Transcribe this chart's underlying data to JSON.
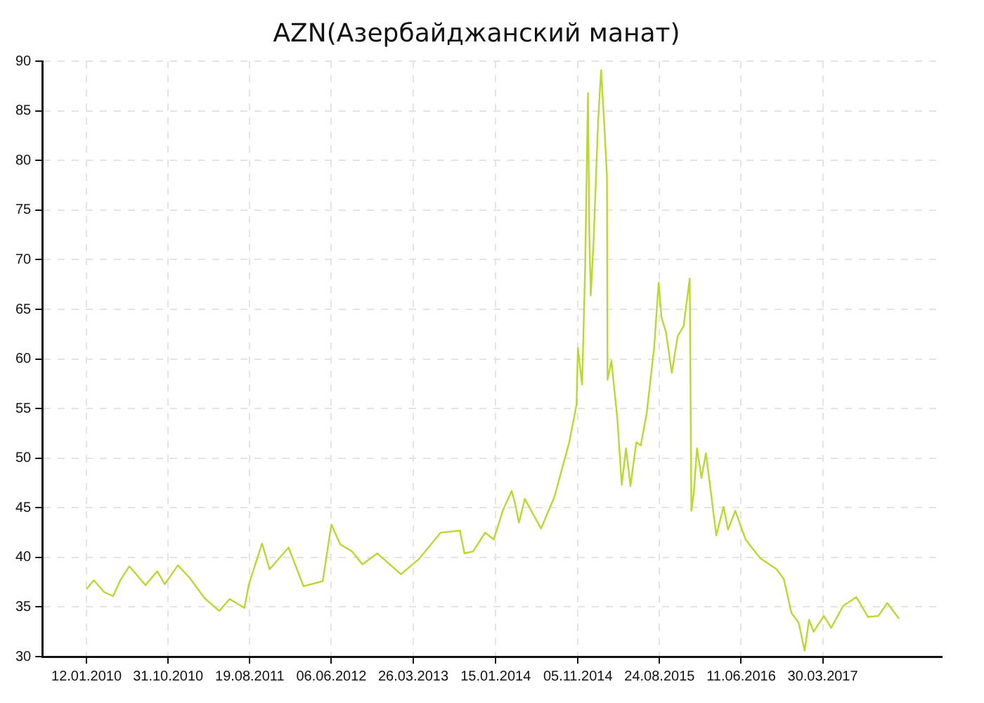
{
  "chart_data": {
    "type": "line",
    "title": "AZN(Азербайджанский манат)",
    "x": [
      "2010-01-12",
      "2010-02-07",
      "2010-03-16",
      "2010-04-17",
      "2010-05-13",
      "2010-06-14",
      "2010-08-11",
      "2010-09-22",
      "2010-10-19",
      "2010-12-05",
      "2011-01-17",
      "2011-03-10",
      "2011-05-02",
      "2011-06-08",
      "2011-07-31",
      "2011-08-16",
      "2011-10-02",
      "2011-10-29",
      "2012-01-05",
      "2012-02-27",
      "2012-05-06",
      "2012-06-06",
      "2012-07-08",
      "2012-08-19",
      "2012-09-25",
      "2012-11-17",
      "2013-02-10",
      "2013-04-14",
      "2013-07-02",
      "2013-09-09",
      "2013-09-25",
      "2013-10-26",
      "2013-12-08",
      "2014-01-08",
      "2014-02-09",
      "2014-03-13",
      "2014-03-23",
      "2014-04-08",
      "2014-04-29",
      "2014-06-26",
      "2014-08-13",
      "2014-10-05",
      "2014-10-31",
      "2014-11-05",
      "2014-11-20",
      "2014-12-01",
      "2014-12-11",
      "2014-12-16",
      "2014-12-21",
      "2014-12-31",
      "2015-01-16",
      "2015-01-27",
      "2015-02-06",
      "2015-02-17",
      "2015-02-19",
      "2015-03-05",
      "2015-03-26",
      "2015-04-11",
      "2015-04-26",
      "2015-05-12",
      "2015-06-02",
      "2015-06-18",
      "2015-07-09",
      "2015-08-05",
      "2015-08-21",
      "2015-08-31",
      "2015-09-16",
      "2015-10-07",
      "2015-10-28",
      "2015-11-18",
      "2015-12-10",
      "2015-12-16",
      "2015-12-25",
      "2016-01-05",
      "2016-01-21",
      "2016-02-06",
      "2016-02-21",
      "2016-03-14",
      "2016-04-09",
      "2016-04-25",
      "2016-05-21",
      "2016-06-27",
      "2016-07-24",
      "2016-08-19",
      "2016-10-16",
      "2016-11-11",
      "2016-12-08",
      "2017-01-03",
      "2017-01-24",
      "2017-02-09",
      "2017-02-25",
      "2017-04-03",
      "2017-04-29",
      "2017-06-11",
      "2017-07-28",
      "2017-09-08",
      "2017-10-15",
      "2017-11-16",
      "2017-12-28"
    ],
    "series": [
      {
        "color": "#b8d932",
        "values": [
          36.8,
          37.7,
          36.5,
          36.1,
          37.7,
          39.1,
          37.2,
          38.6,
          37.3,
          39.2,
          37.9,
          35.9,
          34.6,
          35.8,
          34.9,
          37.3,
          41.4,
          38.8,
          41.0,
          37.1,
          37.6,
          43.3,
          41.3,
          40.6,
          39.3,
          40.4,
          38.3,
          39.8,
          42.5,
          42.7,
          40.4,
          40.6,
          42.5,
          41.8,
          44.7,
          46.7,
          45.7,
          43.5,
          45.9,
          42.9,
          46.1,
          51.6,
          55.4,
          61.1,
          57.4,
          69.3,
          86.8,
          72.5,
          66.4,
          71.8,
          83.8,
          89.1,
          84.3,
          78.4,
          57.9,
          59.8,
          54.0,
          47.3,
          51.0,
          47.2,
          51.6,
          51.3,
          54.5,
          61.2,
          67.7,
          64.2,
          62.7,
          58.6,
          62.3,
          63.3,
          68.1,
          44.7,
          46.6,
          51.0,
          48.0,
          50.5,
          47.2,
          42.2,
          45.1,
          42.8,
          44.7,
          41.8,
          40.8,
          39.9,
          38.8,
          37.8,
          34.4,
          33.4,
          30.6,
          33.7,
          32.5,
          34.1,
          32.9,
          35.1,
          36.0,
          34.0,
          34.1,
          35.4,
          33.8
        ]
      }
    ],
    "xlim": [
      "2009-08-07",
      "2018-05-30"
    ],
    "xticks": [
      {
        "value": "2010-01-12",
        "label": "12.01.2010"
      },
      {
        "value": "2010-10-31",
        "label": "31.10.2010"
      },
      {
        "value": "2011-08-19",
        "label": "19.08.2011"
      },
      {
        "value": "2012-06-06",
        "label": "06.06.2012"
      },
      {
        "value": "2013-03-26",
        "label": "26.03.2013"
      },
      {
        "value": "2014-01-15",
        "label": "15.01.2014"
      },
      {
        "value": "2014-11-05",
        "label": "05.11.2014"
      },
      {
        "value": "2015-08-24",
        "label": "24.08.2015"
      },
      {
        "value": "2016-06-11",
        "label": "11.06.2016"
      },
      {
        "value": "2017-03-30",
        "label": "30.03.2017"
      }
    ],
    "ylim": [
      30,
      90
    ],
    "yticks": [
      30,
      35,
      40,
      45,
      50,
      55,
      60,
      65,
      70,
      75,
      80,
      85,
      90
    ],
    "grid": true,
    "line_style": "solid",
    "marker": "none"
  }
}
